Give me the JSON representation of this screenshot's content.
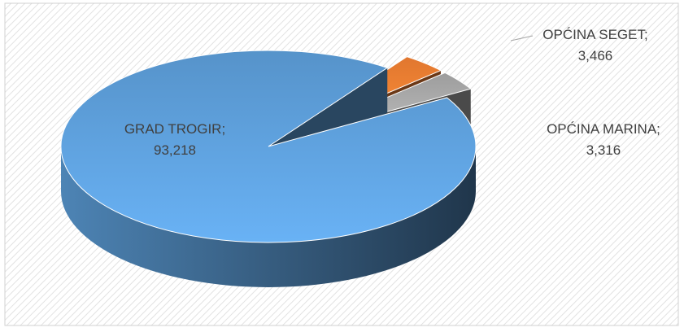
{
  "chart_data": {
    "type": "pie3d",
    "categories": [
      "GRAD TROGIR",
      "OPĆINA SEGET",
      "OPĆINA MARINA"
    ],
    "values": [
      93218,
      3466,
      3316
    ],
    "value_labels": [
      "93,218",
      "3,466",
      "3,316"
    ],
    "label_separator": ";",
    "colors": [
      "#5b9bd5",
      "#ed7d31",
      "#a5a5a5"
    ],
    "exploded": [
      false,
      true,
      true
    ]
  }
}
